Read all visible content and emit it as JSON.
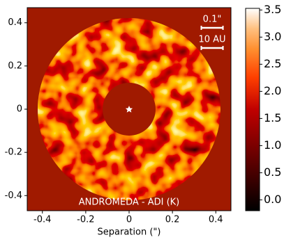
{
  "chart_data": {
    "type": "heatmap",
    "x_label": "Separation (\")",
    "annotation": "ANDROMEDA - ADI (K)",
    "colormap": "gist_heat",
    "xlim": [
      -0.47,
      0.47
    ],
    "xticks": [
      -0.4,
      -0.2,
      0,
      0.2,
      0.4
    ],
    "ylim": [
      -0.47,
      0.47
    ],
    "yticks": [
      0.4,
      0.2,
      0,
      -0.2,
      -0.4
    ],
    "clim": [
      -0.2,
      3.53
    ],
    "cticks": [
      {
        "value": 0,
        "label": "0.0"
      },
      {
        "value": 0.5,
        "label": "0.5"
      },
      {
        "value": 1,
        "label": "1.0"
      },
      {
        "value": 1.5,
        "label": "1.5"
      },
      {
        "value": 2,
        "label": "2.0"
      },
      {
        "value": 2.5,
        "label": "2.5"
      },
      {
        "value": 3,
        "label": "3.0"
      },
      {
        "value": 3.5,
        "label": "3.5"
      }
    ],
    "scale_bars": [
      {
        "label": "0.1\"",
        "length": 0.1
      },
      {
        "label": "10 AU",
        "length": 0.1
      }
    ]
  }
}
